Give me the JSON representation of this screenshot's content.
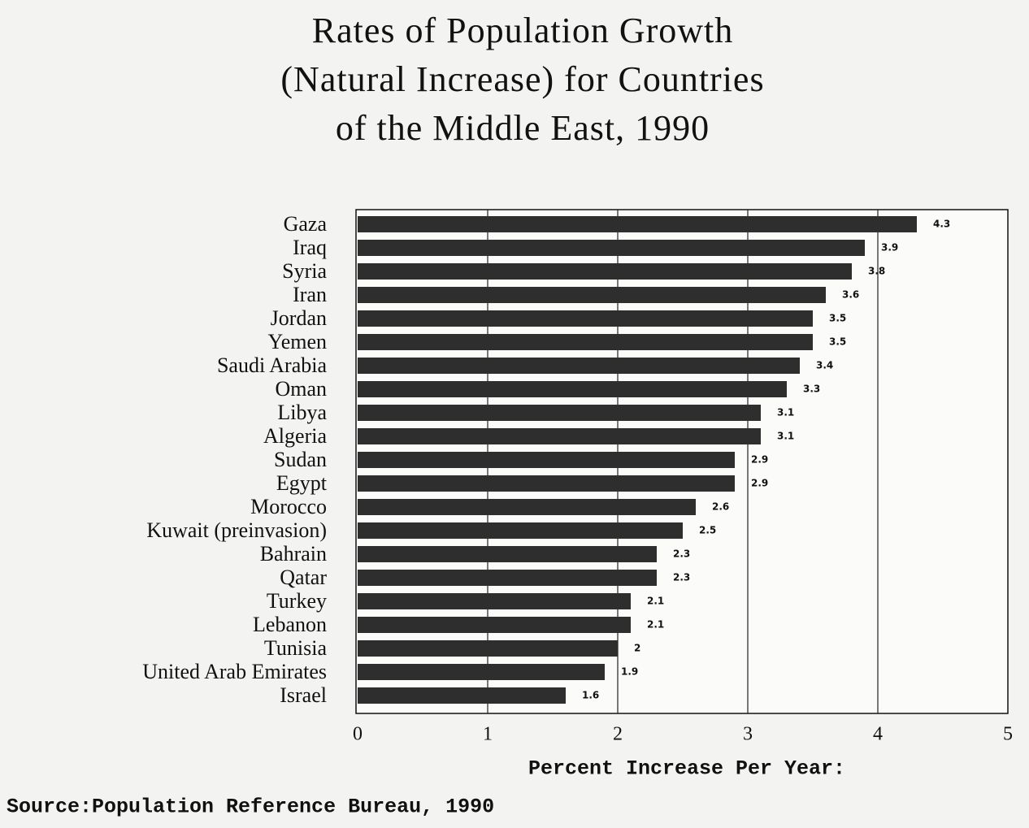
{
  "chart_data": {
    "type": "bar",
    "orientation": "horizontal",
    "title": [
      "Rates of Population Growth",
      "(Natural Increase) for Countries",
      "of the Middle East, 1990"
    ],
    "categories": [
      "Gaza",
      "Iraq",
      "Syria",
      "Iran",
      "Jordan",
      "Yemen",
      "Saudi Arabia",
      "Oman",
      "Libya",
      "Algeria",
      "Sudan",
      "Egypt",
      "Morocco",
      "Kuwait (preinvasion)",
      "Bahrain",
      "Qatar",
      "Turkey",
      "Lebanon",
      "Tunisia",
      "United Arab Emirates",
      "Israel"
    ],
    "values": [
      4.3,
      3.9,
      3.8,
      3.6,
      3.5,
      3.5,
      3.4,
      3.3,
      3.1,
      3.1,
      2.9,
      2.9,
      2.6,
      2.5,
      2.3,
      2.3,
      2.1,
      2.1,
      2,
      1.9,
      1.6
    ],
    "color": "#2e2e2e",
    "xlim": [
      0,
      5
    ],
    "xticks": [
      0,
      1,
      2,
      3,
      4,
      5
    ],
    "grid": true,
    "xlabel": "Percent Increase Per Year:",
    "source": "Source:Population Reference Bureau, 1990"
  }
}
